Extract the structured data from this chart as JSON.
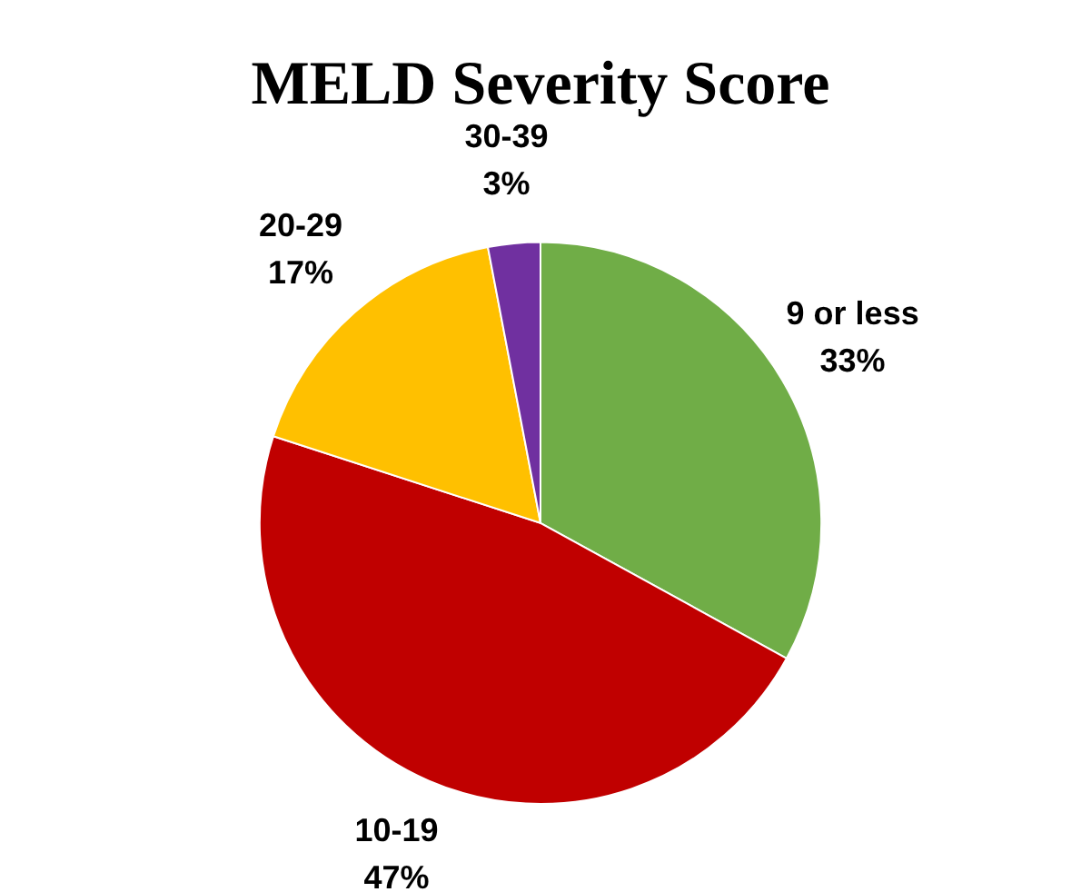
{
  "chart_data": {
    "type": "pie",
    "title": "MELD Severity Score",
    "categories": [
      "9 or less",
      "10-19",
      "20-29",
      "30-39"
    ],
    "values": [
      33,
      47,
      17,
      3
    ],
    "value_labels": [
      "33%",
      "47%",
      "17%",
      "3%"
    ],
    "colors": [
      "#70ad47",
      "#c00000",
      "#ffc000",
      "#7030a0"
    ],
    "legend": false
  }
}
